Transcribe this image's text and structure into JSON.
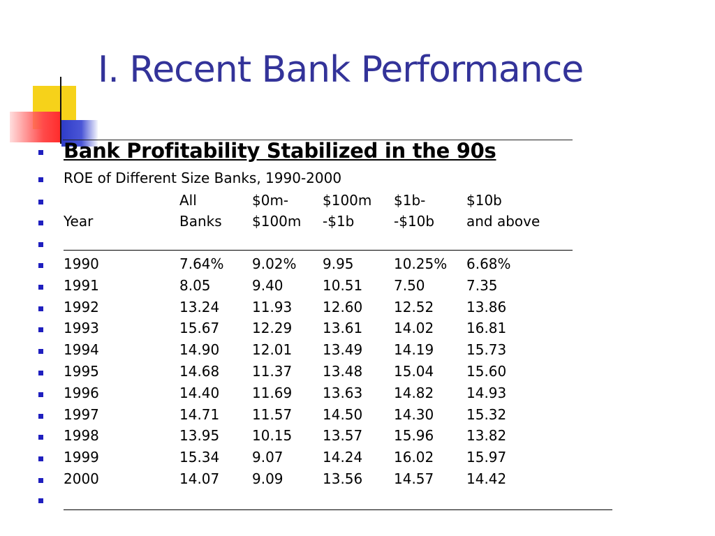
{
  "slide": {
    "title": "I. Recent Bank Performance",
    "heading": "Bank Profitability Stabilized in the 90s",
    "subheading": "ROE of Different Size Banks, 1990-2000",
    "table": {
      "header_row_1": [
        "",
        "All",
        "$0m-",
        "$100m",
        "$1b-",
        "$10b"
      ],
      "header_row_2": [
        "Year",
        "Banks",
        "$100m",
        "-$1b",
        "-$10b",
        "and above"
      ],
      "rows": [
        [
          "1990",
          "7.64%",
          "9.02%",
          "9.95",
          "10.25%",
          "6.68%"
        ],
        [
          "1991",
          "8.05",
          "9.40",
          "10.51",
          "7.50",
          "7.35"
        ],
        [
          "1992",
          "13.24",
          "11.93",
          "12.60",
          "12.52",
          "13.86"
        ],
        [
          "1993",
          "15.67",
          "12.29",
          "13.61",
          "14.02",
          "16.81"
        ],
        [
          "1994",
          "14.90",
          "12.01",
          "13.49",
          "14.19",
          "15.73"
        ],
        [
          "1995",
          "14.68",
          "11.37",
          "13.48",
          "15.04",
          "15.60"
        ],
        [
          "1996",
          "14.40",
          "11.69",
          "13.63",
          "14.82",
          "14.93"
        ],
        [
          "1997",
          "14.71",
          "11.57",
          "14.50",
          "14.30",
          "15.32"
        ],
        [
          "1998",
          "13.95",
          "10.15",
          "13.57",
          "15.96",
          "13.82"
        ],
        [
          "1999",
          "15.34",
          "9.07",
          "14.24",
          "16.02",
          "15.97"
        ],
        [
          "2000",
          "14.07",
          "9.09",
          "13.56",
          "14.57",
          "14.42"
        ]
      ]
    }
  },
  "colors": {
    "title": "#333399",
    "bullet": "#1f1fbf",
    "accent_yellow": "#f6d21a",
    "accent_blue": "#2f3dc8",
    "accent_red": "#ff2a2a"
  }
}
